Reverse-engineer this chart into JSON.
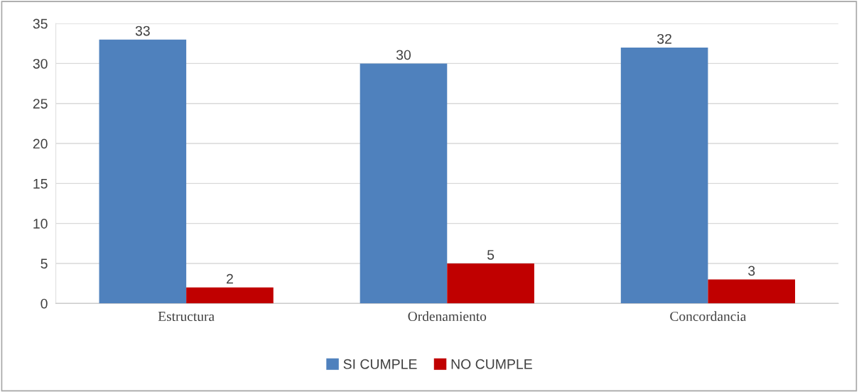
{
  "chart_data": {
    "type": "bar",
    "categories": [
      "Estructura",
      "Ordenamiento",
      "Concordancia"
    ],
    "series": [
      {
        "name": "SI CUMPLE",
        "color": "#4f81bd",
        "values": [
          33,
          30,
          32
        ]
      },
      {
        "name": "NO CUMPLE",
        "color": "#c00000",
        "values": [
          2,
          5,
          3
        ]
      }
    ],
    "ylim": [
      0,
      35
    ],
    "yticks": [
      0,
      5,
      10,
      15,
      20,
      25,
      30,
      35
    ],
    "grid": "y",
    "legend": "bottom",
    "data_labels": true
  }
}
